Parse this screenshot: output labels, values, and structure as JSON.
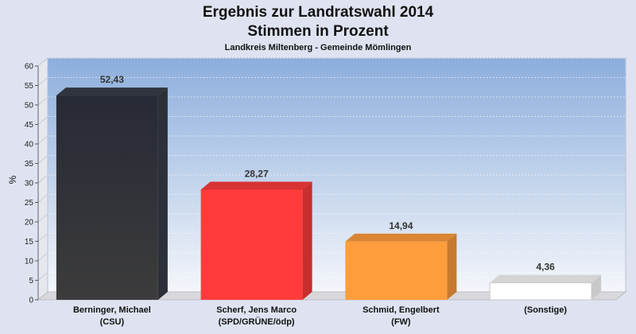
{
  "chart_data": {
    "type": "bar",
    "title": "Ergebnis zur Landratswahl 2014",
    "subtitle": "Stimmen in Prozent",
    "caption": "Landkreis Miltenberg - Gemeinde Mömlingen",
    "ylabel": "%",
    "ylim": [
      0,
      60
    ],
    "yticks": [
      0,
      5,
      10,
      15,
      20,
      25,
      30,
      35,
      40,
      45,
      50,
      55,
      60
    ],
    "grid": true,
    "categories": [
      {
        "line1": "Berninger, Michael",
        "line2": "(CSU)"
      },
      {
        "line1": "Scherf, Jens Marco",
        "line2": "(SPD/GRÜNE/ödp)"
      },
      {
        "line1": "Schmid, Engelbert",
        "line2": "(FW)"
      },
      {
        "line1": "(Sonstige)",
        "line2": ""
      }
    ],
    "values": [
      52.43,
      28.27,
      14.94,
      4.36
    ],
    "value_labels": [
      "52,43",
      "28,27",
      "14,94",
      "4,36"
    ],
    "colors": [
      "#2b2b30",
      "#ff3b3b",
      "#ff9d3c",
      "#ffffff"
    ]
  }
}
